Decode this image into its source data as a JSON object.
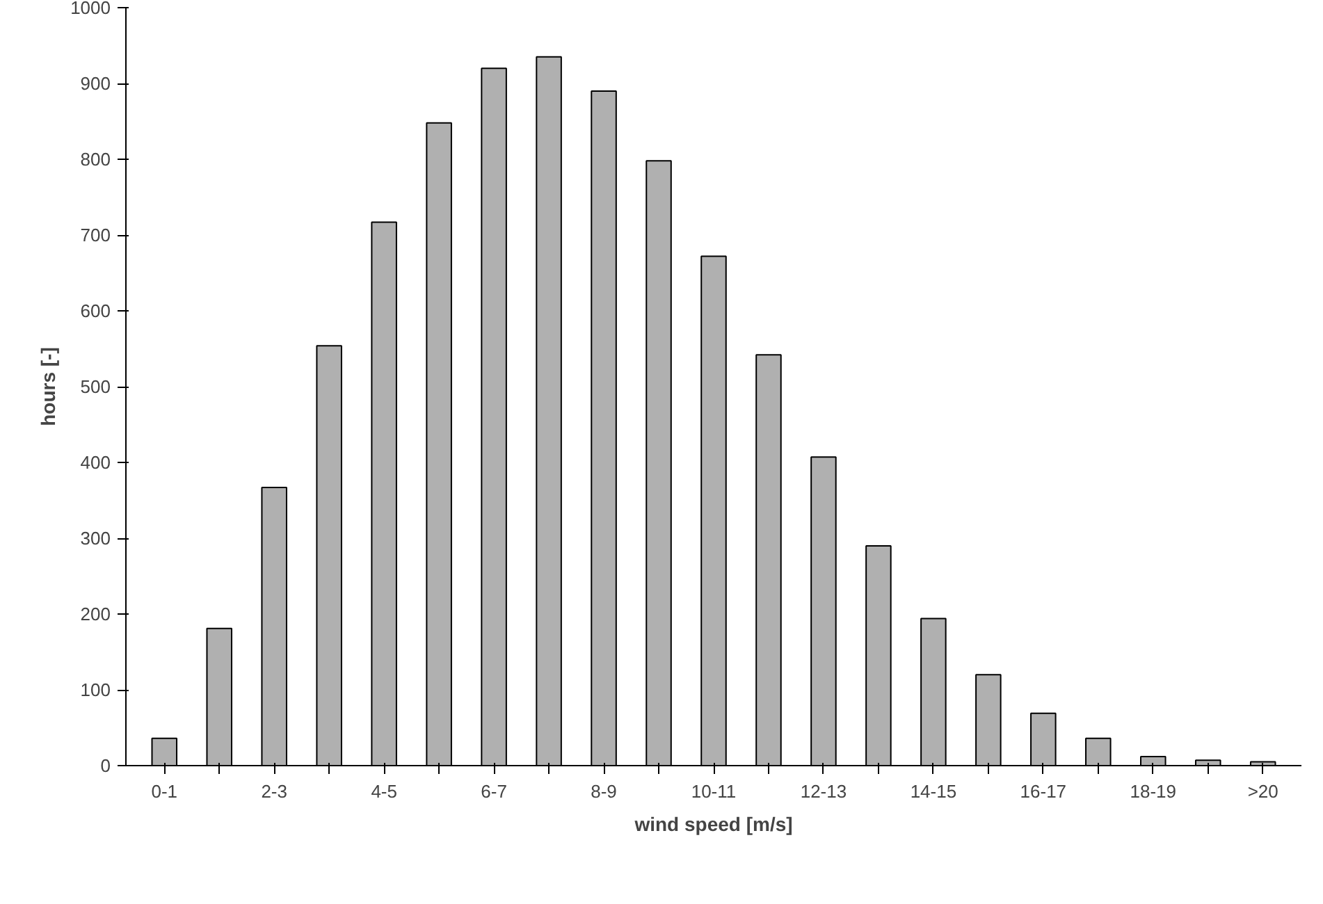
{
  "chart_data": {
    "type": "bar",
    "xlabel": "wind speed [m/s]",
    "ylabel": "hours [-]",
    "categories": [
      "0-1",
      null,
      "2-3",
      null,
      "4-5",
      null,
      "6-7",
      null,
      "8-9",
      null,
      "10-11",
      null,
      "12-13",
      null,
      "14-15",
      null,
      "16-17",
      null,
      "18-19",
      null,
      ">20"
    ],
    "values": [
      36,
      181,
      367,
      554,
      717,
      848,
      920,
      935,
      890,
      798,
      672,
      542,
      407,
      290,
      194,
      120,
      69,
      36,
      12,
      7,
      5
    ],
    "color": "#b0b0b0",
    "ylim": [
      0,
      1000
    ],
    "yticks": [
      0,
      100,
      200,
      300,
      400,
      500,
      600,
      700,
      800,
      900,
      1000
    ],
    "grid": false
  }
}
